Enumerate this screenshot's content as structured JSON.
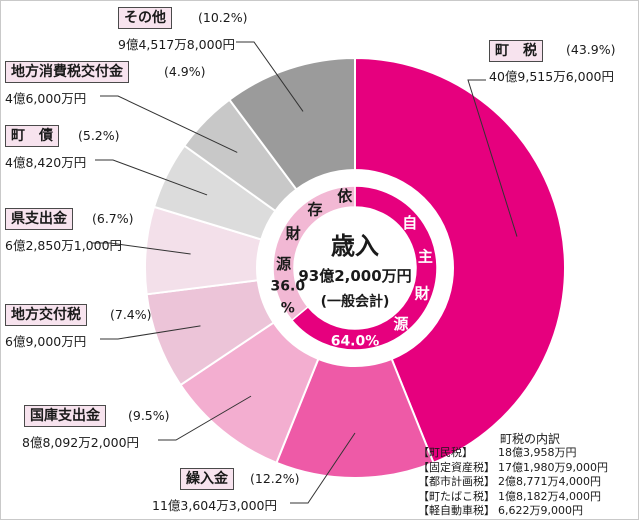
{
  "chart_data": {
    "type": "pie",
    "center": {
      "title": "歳入",
      "amount": "93億2,000万円",
      "note": "(一般会計)"
    },
    "ring": [
      {
        "text": "自主財源",
        "pct": "64.0%",
        "value": 64.0,
        "color": "#e6007e"
      },
      {
        "text": "依存財源",
        "pct": "36.0%",
        "value": 36.0,
        "color": "#f2b8d4"
      }
    ],
    "slices": [
      {
        "name": "町　税",
        "pct": "(43.9%)",
        "value": 43.9,
        "amount": "40億9,515万6,000円",
        "color": "#e6007e"
      },
      {
        "name": "繰入金",
        "pct": "(12.2%)",
        "value": 12.2,
        "amount": "11億3,604万3,000円",
        "color": "#ee5aa7"
      },
      {
        "name": "国庫支出金",
        "pct": "(9.5%)",
        "value": 9.5,
        "amount": "8億8,092万2,000円",
        "color": "#f3aed0"
      },
      {
        "name": "地方交付税",
        "pct": "(7.4%)",
        "value": 7.4,
        "amount": "6億9,000万円",
        "color": "#ecc4d8"
      },
      {
        "name": "県支出金",
        "pct": "(6.7%)",
        "value": 6.7,
        "amount": "6億2,850万1,000円",
        "color": "#f3e0ea"
      },
      {
        "name": "町　債",
        "pct": "(5.2%)",
        "value": 5.2,
        "amount": "4億8,420万円",
        "color": "#dcdcdc"
      },
      {
        "name": "地方消費税交付金",
        "pct": "(4.9%)",
        "value": 4.9,
        "amount": "4億6,000万円",
        "color": "#c8c8c8"
      },
      {
        "name": "その他",
        "pct": "(10.2%)",
        "value": 10.2,
        "amount": "9億4,517万8,000円",
        "color": "#9b9b9b"
      }
    ],
    "breakdown": {
      "title": "町税の内訳",
      "items": [
        {
          "name": "【町民税】",
          "amount": "18億3,958万円"
        },
        {
          "name": "【固定資産税】",
          "amount": "17億1,980万9,000円"
        },
        {
          "name": "【都市計画税】",
          "amount": "2億8,771万4,000円"
        },
        {
          "name": "【町たばこ税】",
          "amount": "1億8,182万4,000円"
        },
        {
          "name": "【軽自動車税】",
          "amount": "6,622万9,000円"
        }
      ]
    }
  }
}
